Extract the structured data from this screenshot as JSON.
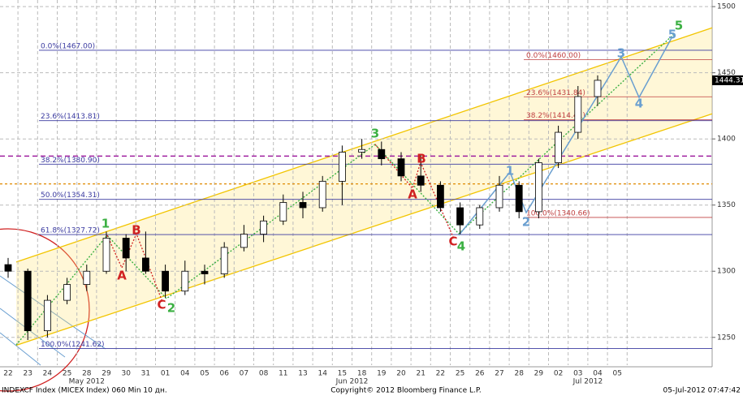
{
  "chart_data": {
    "type": "candlestick",
    "categories": [
      "22",
      "23",
      "24",
      "25",
      "28",
      "29",
      "30",
      "31",
      "01",
      "04",
      "05",
      "06",
      "07",
      "08",
      "11",
      "13",
      "14",
      "15",
      "18",
      "19",
      "20",
      "21",
      "22",
      "25",
      "26",
      "27",
      "28",
      "29",
      "02",
      "03",
      "04",
      "05"
    ],
    "months": [
      "May 2012",
      "Jun 2012",
      "Jul 2012"
    ],
    "open": [
      1305,
      1300,
      1255,
      1278,
      1290,
      1300,
      1325,
      1310,
      1300,
      1285,
      1300,
      1298,
      1318,
      1328,
      1338,
      1352,
      1348,
      1368,
      1390,
      1392,
      1385,
      1372,
      1365,
      1348,
      1335,
      1348,
      1365,
      1345,
      1382,
      1405,
      1432,
      null
    ],
    "high": [
      1310,
      1302,
      1282,
      1295,
      1305,
      1330,
      1328,
      1330,
      1305,
      1308,
      1305,
      1322,
      1335,
      1342,
      1358,
      1360,
      1372,
      1395,
      1400,
      1398,
      1390,
      1388,
      1368,
      1352,
      1350,
      1372,
      1368,
      1385,
      1410,
      1440,
      1448,
      null
    ],
    "low": [
      1295,
      1248,
      1250,
      1275,
      1285,
      1298,
      1300,
      1298,
      1280,
      1282,
      1290,
      1295,
      1315,
      1322,
      1335,
      1340,
      1345,
      1350,
      1385,
      1380,
      1368,
      1360,
      1345,
      1328,
      1332,
      1345,
      1340,
      1340,
      1378,
      1400,
      1425,
      null
    ],
    "close": [
      1300,
      1255,
      1278,
      1290,
      1300,
      1325,
      1310,
      1300,
      1285,
      1300,
      1298,
      1318,
      1328,
      1338,
      1352,
      1348,
      1368,
      1390,
      1392,
      1385,
      1372,
      1365,
      1348,
      1335,
      1348,
      1365,
      1345,
      1382,
      1405,
      1432,
      1444.31,
      null
    ],
    "last_price": 1444.31,
    "ylim": [
      1229,
      1505
    ],
    "yticks": [
      1250,
      1300,
      1350,
      1400,
      1450,
      1500
    ],
    "fib_main": [
      {
        "label": "0.0%(1467.00)",
        "value": 1467
      },
      {
        "label": "23.6%(1413.81)",
        "value": 1413.81
      },
      {
        "label": "38.2%(1380.90)",
        "value": 1380.9
      },
      {
        "label": "50.0%(1354.31)",
        "value": 1354.31
      },
      {
        "label": "61.8%(1327.72)",
        "value": 1327.72
      },
      {
        "label": "100.0%(1241.62)",
        "value": 1241.62
      }
    ],
    "fib_recent": [
      {
        "label": "0.0%(1460.00)",
        "value": 1460
      },
      {
        "label": "23.6%(1431.84)",
        "value": 1431.84
      },
      {
        "label": "38.2%(1414.41)",
        "value": 1414.41
      },
      {
        "label": "100.0%(1340.66)",
        "value": 1340.66
      }
    ],
    "support_level": 1387,
    "resistance_level": 1366,
    "channel_upper": [
      1307,
      1484
    ],
    "channel_lower": [
      1244,
      1419
    ],
    "waves_main": [
      "1",
      "2",
      "3",
      "4",
      "5"
    ],
    "waves_corr": [
      "A",
      "B",
      "C",
      "A",
      "B",
      "C"
    ],
    "waves_proj": [
      "1",
      "2",
      "3",
      "4",
      "5"
    ],
    "footer_left": "INDEXCF Index (MICEX Index) 060 Min 10 дн.",
    "footer_center": "Copyright© 2012 Bloomberg Finance L.P.",
    "footer_right": "05-Jul-2012 07:47:42"
  }
}
